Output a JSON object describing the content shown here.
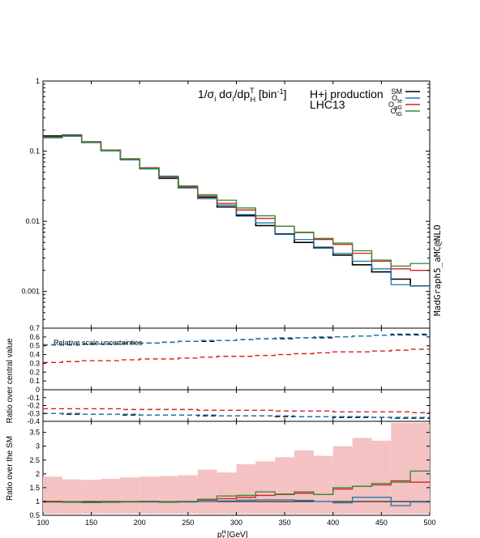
{
  "chart_data": {
    "type": "line",
    "x_edges": [
      100,
      120,
      140,
      160,
      180,
      200,
      220,
      240,
      260,
      280,
      300,
      320,
      340,
      360,
      380,
      400,
      420,
      440,
      460,
      480,
      500
    ],
    "x_ticks": [
      "100",
      "150",
      "200",
      "250",
      "300",
      "350",
      "400",
      "450",
      "500"
    ],
    "xlabel": "p",
    "xlabel_sup": "H",
    "xlabel_sub": "T",
    "xlabel_unit": "[GeV]",
    "watermark": "MadGraph5_aMC@NLO",
    "colors": {
      "SM": "#000000",
      "Ote": "#1f78b4",
      "OphiG": "#d62020",
      "OtG": "#2e8b2e",
      "band": "#f4c2c2"
    },
    "main": {
      "title": "1/σ",
      "title_sub1": "i",
      "title_mid": " dσ",
      "title_sub2": "i",
      "title_mid2": "/dp",
      "title_sup": "T",
      "title_sub3": "H",
      "title_end": " [bin",
      "title_sup2": "-1",
      "title_close": "]",
      "process_line1": "H+j production",
      "process_line2": "LHC13",
      "y_ticks": [
        "1",
        "0.1",
        "0.01",
        "0.001"
      ],
      "ylim": [
        0.0003,
        1
      ],
      "legend": [
        {
          "key": "SM",
          "label": "SM",
          "sub": ""
        },
        {
          "key": "Ote",
          "label": "O",
          "sub": "te"
        },
        {
          "key": "OphiG",
          "label": "O",
          "sub": "φG"
        },
        {
          "key": "OtG",
          "label": "O",
          "sub": "tG"
        }
      ],
      "series": [
        {
          "key": "SM",
          "values": [
            0.165,
            0.17,
            0.133,
            0.103,
            0.076,
            0.056,
            0.041,
            0.03,
            0.022,
            0.016,
            0.012,
            0.0087,
            0.0066,
            0.005,
            0.0042,
            0.0033,
            0.0024,
            0.0019,
            0.0015,
            0.0012
          ]
        },
        {
          "key": "Ote",
          "values": [
            0.155,
            0.163,
            0.133,
            0.101,
            0.075,
            0.056,
            0.042,
            0.03,
            0.021,
            0.017,
            0.0125,
            0.0095,
            0.0065,
            0.0055,
            0.0043,
            0.0035,
            0.0027,
            0.0021,
            0.00125,
            0.0012
          ]
        },
        {
          "key": "OphiG",
          "values": [
            0.16,
            0.168,
            0.137,
            0.104,
            0.078,
            0.058,
            0.043,
            0.031,
            0.023,
            0.018,
            0.0145,
            0.011,
            0.0085,
            0.0069,
            0.0055,
            0.0047,
            0.0035,
            0.0027,
            0.0021,
            0.002
          ]
        },
        {
          "key": "OtG",
          "values": [
            0.158,
            0.166,
            0.135,
            0.102,
            0.077,
            0.057,
            0.044,
            0.032,
            0.024,
            0.02,
            0.0155,
            0.012,
            0.0085,
            0.007,
            0.0057,
            0.0049,
            0.0038,
            0.0028,
            0.0023,
            0.0025
          ]
        }
      ]
    },
    "scale": {
      "annotation": "Relative scale uncertainties",
      "upper_ticks": [
        "0.7",
        "0.6",
        "0.5",
        "0.4",
        "0.3",
        "0.2",
        "0.1",
        "0"
      ],
      "upper_ylim": [
        0,
        0.7
      ],
      "lower_ticks": [
        "0",
        "-0.1",
        "-0.2",
        "-0.3",
        "-0.4"
      ],
      "lower_ylim": [
        -0.4,
        0
      ],
      "up": [
        {
          "key": "SM",
          "values": [
            0.51,
            0.51,
            0.52,
            0.52,
            0.53,
            0.53,
            0.54,
            0.55,
            0.55,
            0.56,
            0.57,
            0.58,
            0.58,
            0.59,
            0.59,
            0.6,
            0.61,
            0.62,
            0.63,
            0.63
          ]
        },
        {
          "key": "Ote",
          "values": [
            0.51,
            0.51,
            0.52,
            0.52,
            0.53,
            0.53,
            0.54,
            0.55,
            0.56,
            0.56,
            0.57,
            0.58,
            0.59,
            0.59,
            0.6,
            0.6,
            0.61,
            0.62,
            0.62,
            0.62
          ]
        },
        {
          "key": "OphiG",
          "values": [
            0.31,
            0.32,
            0.33,
            0.33,
            0.34,
            0.35,
            0.35,
            0.36,
            0.37,
            0.38,
            0.38,
            0.39,
            0.4,
            0.41,
            0.42,
            0.43,
            0.43,
            0.44,
            0.45,
            0.46
          ]
        }
      ],
      "down": [
        {
          "key": "SM",
          "values": [
            -0.3,
            -0.31,
            -0.31,
            -0.31,
            -0.32,
            -0.32,
            -0.32,
            -0.32,
            -0.33,
            -0.33,
            -0.33,
            -0.33,
            -0.34,
            -0.34,
            -0.34,
            -0.35,
            -0.35,
            -0.35,
            -0.36,
            -0.36
          ]
        },
        {
          "key": "Ote",
          "values": [
            -0.3,
            -0.3,
            -0.31,
            -0.31,
            -0.31,
            -0.32,
            -0.32,
            -0.32,
            -0.32,
            -0.33,
            -0.33,
            -0.33,
            -0.33,
            -0.34,
            -0.34,
            -0.34,
            -0.34,
            -0.35,
            -0.35,
            -0.35
          ]
        },
        {
          "key": "OphiG",
          "values": [
            -0.24,
            -0.24,
            -0.24,
            -0.24,
            -0.25,
            -0.25,
            -0.25,
            -0.25,
            -0.26,
            -0.26,
            -0.26,
            -0.26,
            -0.27,
            -0.27,
            -0.27,
            -0.28,
            -0.28,
            -0.28,
            -0.28,
            -0.29
          ]
        }
      ]
    },
    "ratio": {
      "y_ticks": [
        "3.5",
        "3",
        "2.5",
        "2",
        "1.5",
        "1",
        "0.5"
      ],
      "ylim": [
        0.5,
        3.9
      ],
      "band_low": [
        0.55,
        0.55,
        0.56,
        0.56,
        0.56,
        0.56,
        0.56,
        0.56,
        0.55,
        0.55,
        0.55,
        0.55,
        0.55,
        0.55,
        0.55,
        0.55,
        0.55,
        0.55,
        0.55,
        0.55
      ],
      "band_high": [
        1.9,
        1.8,
        1.78,
        1.82,
        1.87,
        1.9,
        1.92,
        1.95,
        2.15,
        2.05,
        2.35,
        2.45,
        2.6,
        2.85,
        2.65,
        3.0,
        3.3,
        3.2,
        3.85,
        3.85
      ],
      "series": [
        {
          "key": "Ote",
          "values": [
            0.98,
            0.97,
            0.96,
            0.97,
            0.98,
            0.98,
            0.97,
            0.98,
            1.0,
            1.02,
            1.05,
            1.06,
            1.06,
            1.04,
            1.0,
            0.95,
            1.15,
            1.15,
            0.85,
            0.98
          ]
        },
        {
          "key": "OphiG",
          "values": [
            1.01,
            0.99,
            0.97,
            0.98,
            1.0,
            1.01,
            0.99,
            1.0,
            1.05,
            1.1,
            1.15,
            1.22,
            1.25,
            1.3,
            1.25,
            1.45,
            1.55,
            1.6,
            1.75,
            1.7
          ]
        },
        {
          "key": "OtG",
          "values": [
            0.98,
            0.98,
            0.97,
            0.98,
            0.99,
            1.0,
            0.98,
            1.0,
            1.08,
            1.2,
            1.22,
            1.35,
            1.27,
            1.35,
            1.25,
            1.5,
            1.55,
            1.65,
            1.7,
            2.1
          ]
        }
      ]
    },
    "ylabel_scale": "Ratio over central value",
    "ylabel_ratio": "Ratio over the SM"
  }
}
